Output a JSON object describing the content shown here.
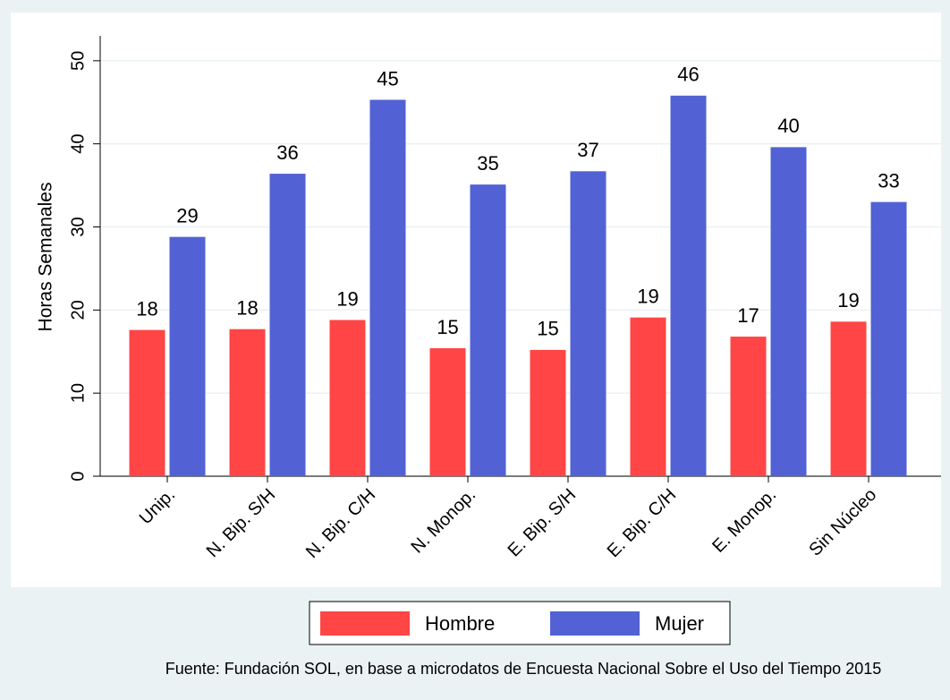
{
  "chart_data": {
    "type": "bar",
    "categories": [
      "Unip.",
      "N. Bip. S/H",
      "N. Bip. C/H",
      "N. Monop.",
      "E. Bip. S/H",
      "E. Bip. C/H",
      "E. Monop.",
      "Sin Núcleo"
    ],
    "series": [
      {
        "name": "Hombre",
        "color": "#ff4545",
        "values": [
          17.6,
          17.7,
          18.8,
          15.4,
          15.2,
          19.1,
          16.8,
          18.6
        ],
        "value_labels": [
          "18",
          "18",
          "19",
          "15",
          "15",
          "19",
          "17",
          "19"
        ]
      },
      {
        "name": "Mujer",
        "color": "#5262d4",
        "values": [
          28.8,
          36.4,
          45.3,
          35.1,
          36.7,
          45.8,
          39.6,
          33.0
        ],
        "value_labels": [
          "29",
          "36",
          "45",
          "35",
          "37",
          "46",
          "40",
          "33"
        ]
      }
    ],
    "ylabel": "Horas Semanales",
    "ylim": [
      0,
      53
    ],
    "yticks": [
      0,
      10,
      20,
      30,
      40,
      50
    ],
    "grid": true,
    "legend": "bottom",
    "source": "Fuente: Fundación SOL, en base a microdatos de Encuesta Nacional Sobre el Uso del Tiempo 2015"
  }
}
